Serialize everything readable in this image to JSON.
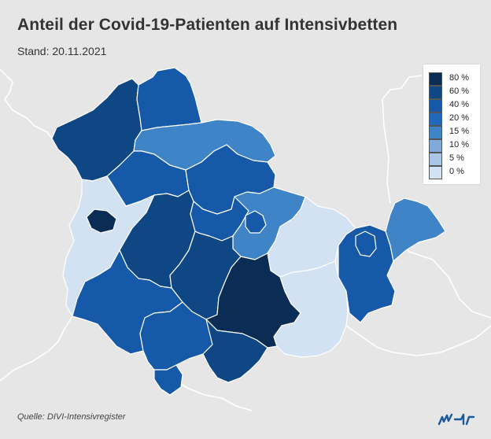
{
  "title": "Anteil der Covid-19-Patienten auf Intensivbetten",
  "subtitle": "Stand: 20.11.2021",
  "source": "Quelle: DIVI-Intensivregister",
  "logo_text": "mdr",
  "legend": {
    "items": [
      {
        "label": "80 %",
        "color": "#0b2d55"
      },
      {
        "label": "60 %",
        "color": "#0f4784"
      },
      {
        "label": "40 %",
        "color": "#1559a8"
      },
      {
        "label": "20 %",
        "color": "#2169b8"
      },
      {
        "label": "15 %",
        "color": "#3f84c7"
      },
      {
        "label": "10 %",
        "color": "#7faada"
      },
      {
        "label": "5 %",
        "color": "#a9c6e8"
      },
      {
        "label": "0 %",
        "color": "#d3e2f3"
      }
    ]
  },
  "colors": {
    "background": "#e6e6e6",
    "neighbor_fill": "#e6e6e6",
    "outline": "#ffffff",
    "text": "#333333",
    "logo": "#1a5a9c"
  }
}
